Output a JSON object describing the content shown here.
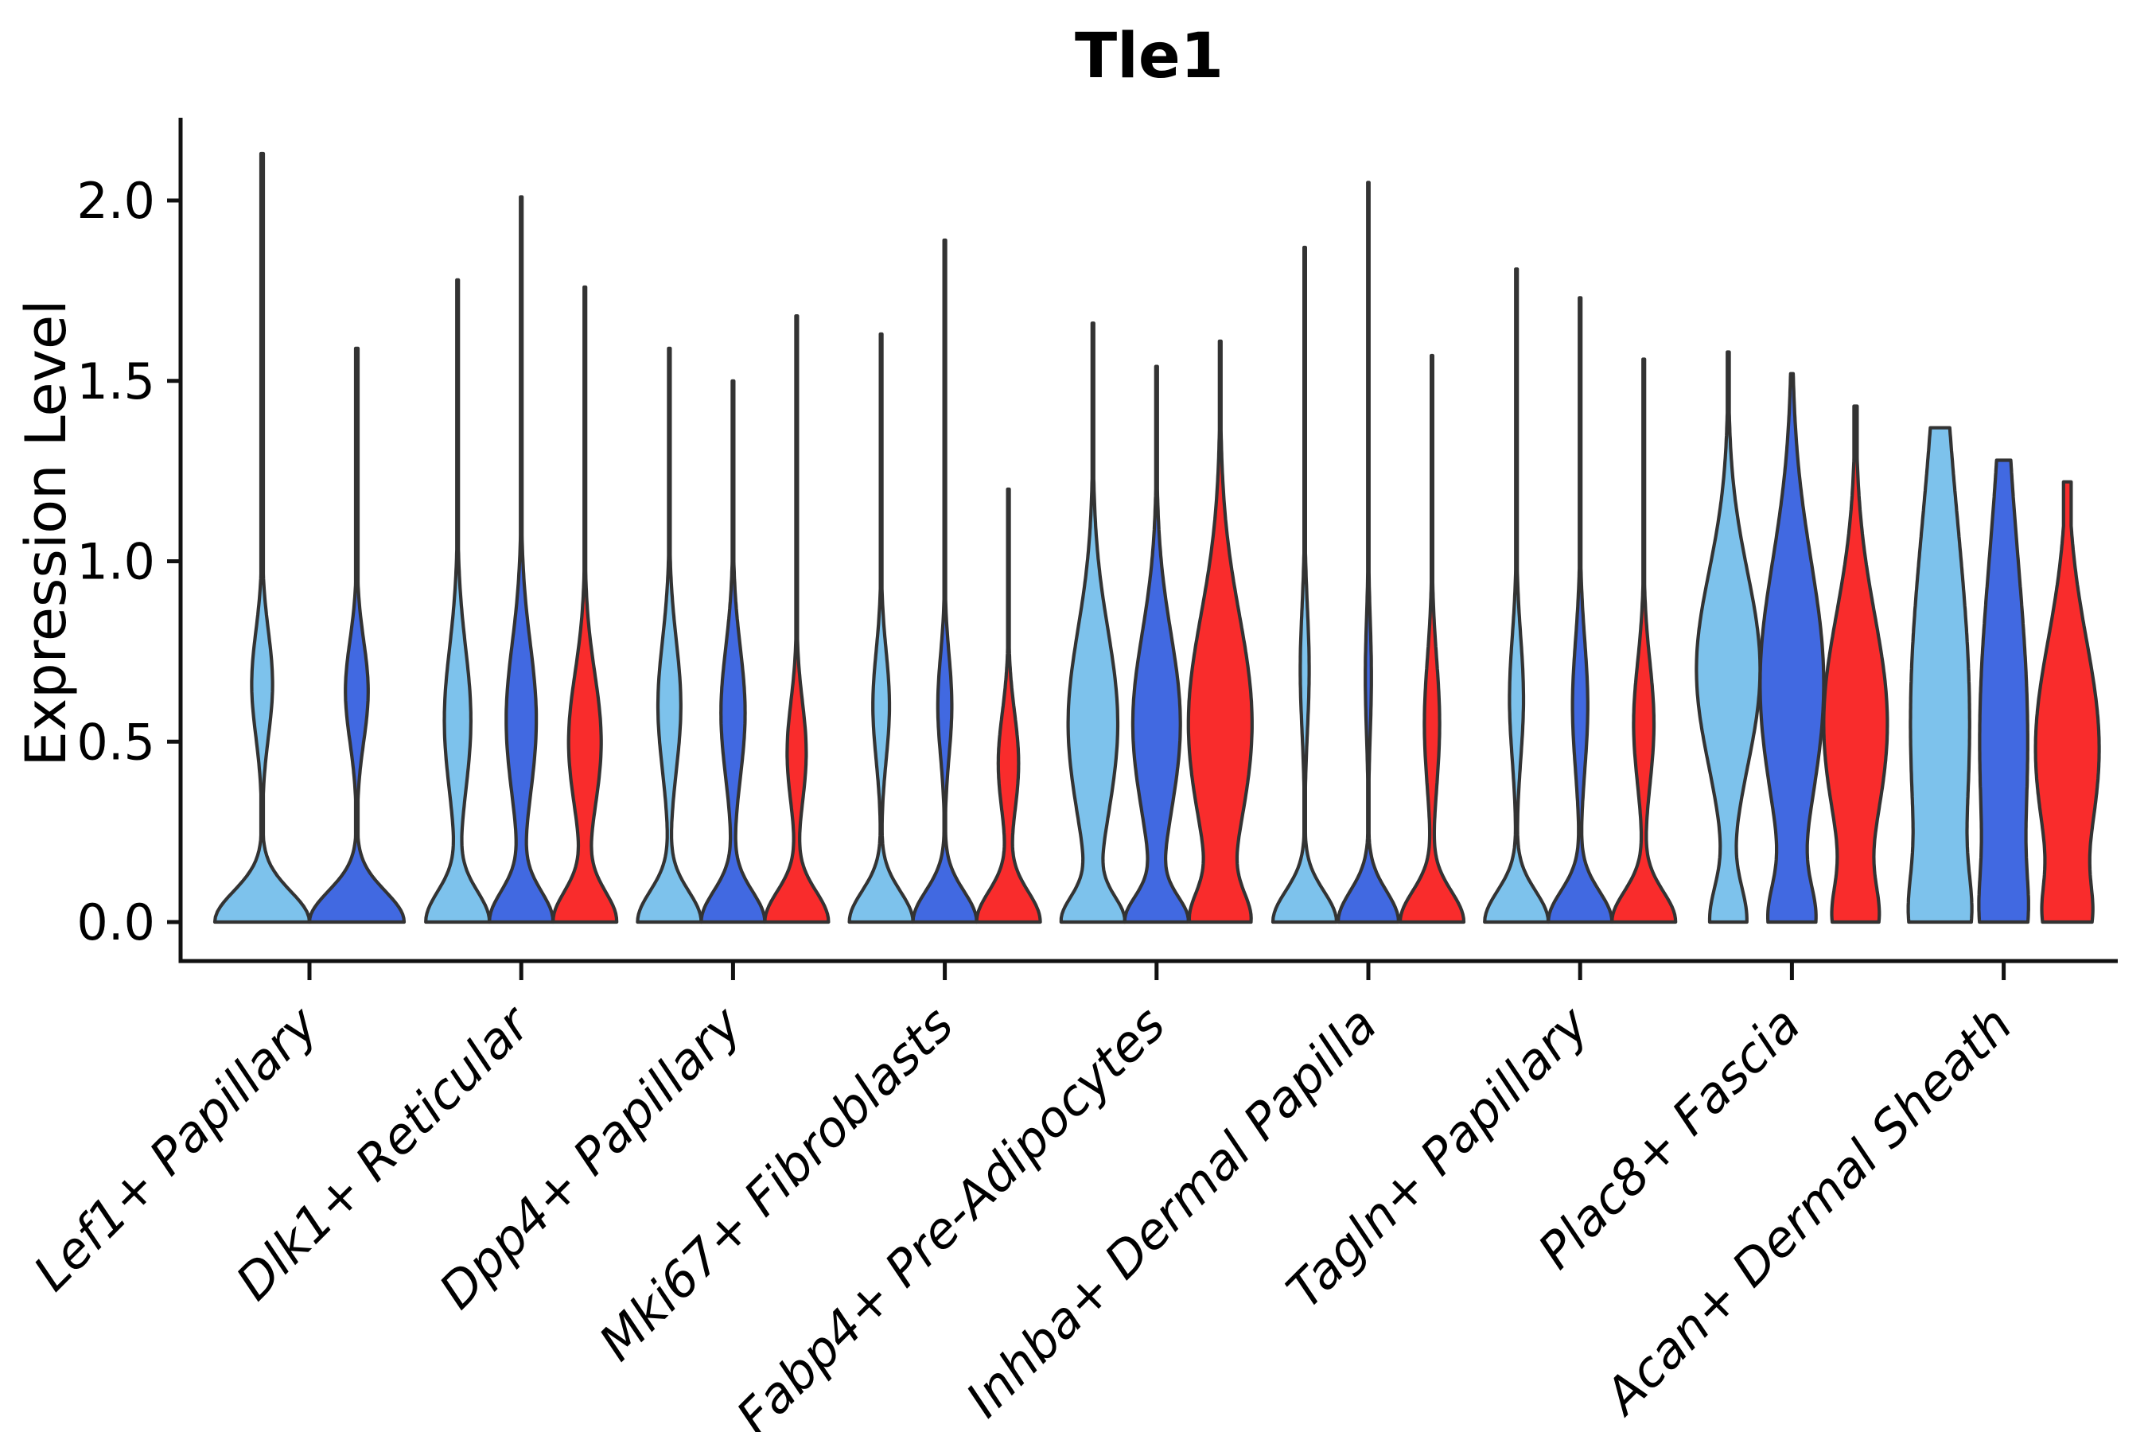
{
  "title": "Tle1",
  "axes": {
    "ylabel": "Expression Level",
    "ytick_labels": [
      "0.0",
      "0.5",
      "1.0",
      "1.5",
      "2.0"
    ],
    "ytick_values": [
      0.0,
      0.5,
      1.0,
      1.5,
      2.0
    ],
    "ylim_shown": [
      0.0,
      2.2
    ]
  },
  "colors": {
    "skyblue": "#7DC2EC",
    "royalblue": "#4169E1",
    "red": "#F92C2C",
    "edge": "#333333",
    "spine": "#111111",
    "text": "#000000"
  },
  "chart_data": {
    "type": "violin",
    "title": "Tle1",
    "xlabel": "",
    "ylabel": "Expression Level",
    "legend": "none",
    "grid": false,
    "categories": [
      "Lef1+ Papillary",
      "Dlk1+ Reticular",
      "Dpp4+ Papillary",
      "Mki67+ Fibroblasts",
      "Fabp4+ Pre-Adipocytes",
      "Inhba+ Dermal Papilla",
      "Tagln+ Papillary",
      "Plac8+ Fascia",
      "Acan+ Dermal Sheath"
    ],
    "series_colors": [
      "skyblue",
      "royalblue",
      "red"
    ],
    "violins": [
      {
        "cat": 0,
        "series": 0,
        "color": "skyblue",
        "peak": 2.13,
        "profile": [
          [
            1,
            0,
            0.085
          ],
          [
            0.22,
            0.66,
            0.145
          ]
        ],
        "min": 0.025,
        "scale": 1
      },
      {
        "cat": 0,
        "series": 1,
        "color": "royalblue",
        "peak": 1.59,
        "profile": [
          [
            1,
            0,
            0.085
          ],
          [
            0.24,
            0.64,
            0.14
          ]
        ],
        "min": 0.025,
        "scale": 1
      },
      {
        "cat": 1,
        "series": 0,
        "color": "skyblue",
        "peak": 1.78,
        "profile": [
          [
            1,
            0,
            0.085
          ],
          [
            0.42,
            0.56,
            0.2
          ]
        ],
        "min": 0.025,
        "scale": 1
      },
      {
        "cat": 1,
        "series": 1,
        "color": "royalblue",
        "peak": 2.01,
        "profile": [
          [
            1,
            0,
            0.085
          ],
          [
            0.48,
            0.56,
            0.21
          ]
        ],
        "min": 0.025,
        "scale": 1
      },
      {
        "cat": 1,
        "series": 2,
        "color": "red",
        "peak": 1.76,
        "profile": [
          [
            1,
            0,
            0.085
          ],
          [
            0.52,
            0.5,
            0.19
          ]
        ],
        "min": 0.025,
        "scale": 1
      },
      {
        "cat": 2,
        "series": 0,
        "color": "skyblue",
        "peak": 1.59,
        "profile": [
          [
            1,
            0,
            0.085
          ],
          [
            0.36,
            0.6,
            0.18
          ]
        ],
        "min": 0.025,
        "scale": 1
      },
      {
        "cat": 2,
        "series": 1,
        "color": "royalblue",
        "peak": 1.5,
        "profile": [
          [
            1,
            0,
            0.085
          ],
          [
            0.38,
            0.58,
            0.18
          ]
        ],
        "min": 0.025,
        "scale": 1
      },
      {
        "cat": 2,
        "series": 2,
        "color": "red",
        "peak": 1.68,
        "profile": [
          [
            1,
            0,
            0.085
          ],
          [
            0.3,
            0.47,
            0.14
          ]
        ],
        "min": 0.025,
        "scale": 1
      },
      {
        "cat": 3,
        "series": 0,
        "color": "skyblue",
        "peak": 1.63,
        "profile": [
          [
            1,
            0,
            0.085
          ],
          [
            0.26,
            0.6,
            0.15
          ]
        ],
        "min": 0.025,
        "scale": 1
      },
      {
        "cat": 3,
        "series": 1,
        "color": "royalblue",
        "peak": 1.89,
        "profile": [
          [
            1,
            0,
            0.085
          ],
          [
            0.22,
            0.6,
            0.14
          ]
        ],
        "min": 0.025,
        "scale": 1
      },
      {
        "cat": 3,
        "series": 2,
        "color": "red",
        "peak": 1.2,
        "profile": [
          [
            1,
            0,
            0.085
          ],
          [
            0.32,
            0.44,
            0.14
          ]
        ],
        "min": 0.025,
        "scale": 1
      },
      {
        "cat": 4,
        "series": 0,
        "color": "skyblue",
        "peak": 1.66,
        "profile": [
          [
            1,
            0,
            0.07
          ],
          [
            0.85,
            0.55,
            0.26
          ]
        ],
        "min": 0.025,
        "scale": 1
      },
      {
        "cat": 4,
        "series": 1,
        "color": "royalblue",
        "peak": 1.54,
        "profile": [
          [
            1,
            0,
            0.07
          ],
          [
            0.8,
            0.55,
            0.25
          ]
        ],
        "min": 0.025,
        "scale": 1
      },
      {
        "cat": 4,
        "series": 2,
        "color": "red",
        "peak": 1.61,
        "profile": [
          [
            0.78,
            0,
            0.08
          ],
          [
            1.0,
            0.55,
            0.3
          ]
        ],
        "min": 0.025,
        "scale": 1
      },
      {
        "cat": 5,
        "series": 0,
        "color": "skyblue",
        "peak": 1.87,
        "profile": [
          [
            1,
            0,
            0.085
          ],
          [
            0.14,
            0.7,
            0.17
          ]
        ],
        "min": 0.022,
        "scale": 1
      },
      {
        "cat": 5,
        "series": 1,
        "color": "royalblue",
        "peak": 2.05,
        "profile": [
          [
            1,
            0,
            0.085
          ],
          [
            0.1,
            0.68,
            0.16
          ]
        ],
        "min": 0.022,
        "scale": 0.95
      },
      {
        "cat": 5,
        "series": 2,
        "color": "red",
        "peak": 1.57,
        "profile": [
          [
            1,
            0,
            0.085
          ],
          [
            0.24,
            0.55,
            0.18
          ]
        ],
        "min": 0.022,
        "scale": 1
      },
      {
        "cat": 6,
        "series": 0,
        "color": "skyblue",
        "peak": 1.81,
        "profile": [
          [
            1,
            0,
            0.085
          ],
          [
            0.22,
            0.62,
            0.17
          ]
        ],
        "min": 0.025,
        "scale": 1
      },
      {
        "cat": 6,
        "series": 1,
        "color": "royalblue",
        "peak": 1.73,
        "profile": [
          [
            1,
            0,
            0.085
          ],
          [
            0.24,
            0.6,
            0.18
          ]
        ],
        "min": 0.025,
        "scale": 1
      },
      {
        "cat": 6,
        "series": 2,
        "color": "red",
        "peak": 1.56,
        "profile": [
          [
            1,
            0,
            0.085
          ],
          [
            0.32,
            0.55,
            0.17
          ]
        ],
        "min": 0.025,
        "scale": 1
      },
      {
        "cat": 7,
        "series": 0,
        "color": "skyblue",
        "peak": 1.58,
        "profile": [
          [
            0.55,
            0,
            0.1
          ],
          [
            1.0,
            0.7,
            0.27
          ]
        ],
        "min": 0.03,
        "scale": 1
      },
      {
        "cat": 7,
        "series": 1,
        "color": "royalblue",
        "peak": 1.52,
        "profile": [
          [
            0.6,
            0,
            0.1
          ],
          [
            1.0,
            0.66,
            0.34
          ]
        ],
        "min": 0.03,
        "scale": 1
      },
      {
        "cat": 7,
        "series": 2,
        "color": "red",
        "peak": 1.43,
        "profile": [
          [
            0.52,
            0,
            0.1
          ],
          [
            0.95,
            0.55,
            0.3
          ]
        ],
        "min": 0.05,
        "scale": 1
      },
      {
        "cat": 8,
        "series": 0,
        "color": "skyblue",
        "peak": 1.37,
        "profile": [
          [
            0.45,
            0,
            0.12
          ],
          [
            1.0,
            0.55,
            0.55
          ]
        ],
        "min": 0.05,
        "scale": 1
      },
      {
        "cat": 8,
        "series": 1,
        "color": "royalblue",
        "peak": 1.28,
        "profile": [
          [
            0.4,
            0,
            0.12
          ],
          [
            1.0,
            0.5,
            0.5
          ]
        ],
        "min": 0.05,
        "scale": 0.78
      },
      {
        "cat": 8,
        "series": 2,
        "color": "red",
        "peak": 1.22,
        "profile": [
          [
            0.5,
            0,
            0.1
          ],
          [
            1.0,
            0.48,
            0.3
          ]
        ],
        "min": 0.12,
        "scale": 1
      }
    ]
  }
}
